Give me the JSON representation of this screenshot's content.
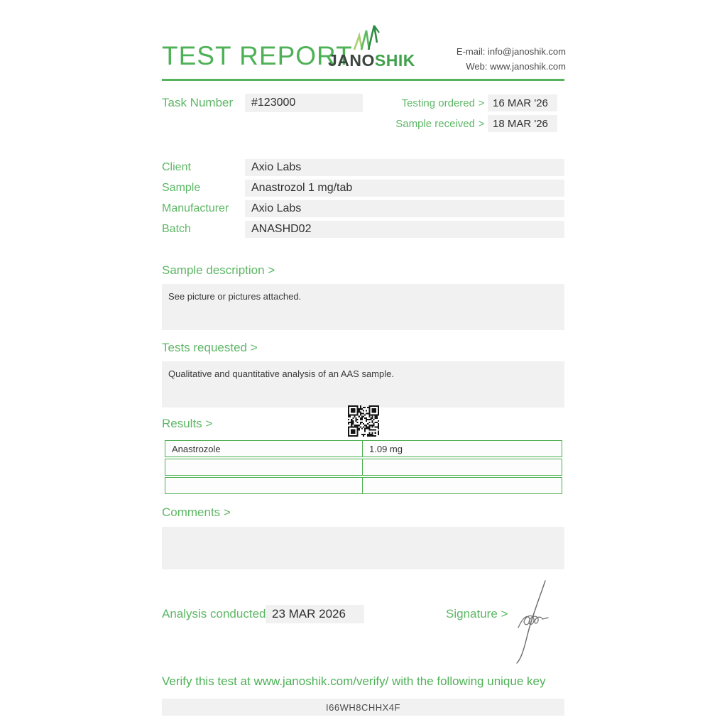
{
  "header": {
    "title": "TEST REPORT",
    "logo": {
      "name_dark": "JANO",
      "name_green": "SHIK"
    },
    "contact": {
      "email_line": "E-mail: info@janoshik.com",
      "web_line": "Web: www.janoshik.com"
    }
  },
  "task": {
    "label": "Task Number",
    "value": "#123000",
    "dates": [
      {
        "label": "Testing ordered",
        "arrow": ">",
        "value": "16 MAR '26"
      },
      {
        "label": "Sample received",
        "arrow": ">",
        "value": "18 MAR '26"
      }
    ]
  },
  "info_rows": [
    {
      "label": "Client",
      "value": "Axio Labs"
    },
    {
      "label": "Sample",
      "value": "Anastrozol 1 mg/tab"
    },
    {
      "label": "Manufacturer",
      "value": "Axio Labs"
    },
    {
      "label": "Batch",
      "value": "ANASHD02"
    }
  ],
  "sections": {
    "sample_description": {
      "heading": "Sample description >",
      "body": "See picture or pictures attached."
    },
    "tests_requested": {
      "heading": "Tests requested >",
      "body": "Qualitative and quantitative analysis of an AAS sample."
    },
    "results": {
      "heading": "Results >",
      "rows": [
        {
          "analyte": "Anastrozole",
          "amount": "1.09 mg"
        },
        {
          "analyte": "",
          "amount": ""
        },
        {
          "analyte": "",
          "amount": ""
        }
      ]
    },
    "comments": {
      "heading": "Comments >",
      "body": ""
    }
  },
  "footer": {
    "analysis_label": "Analysis conducted >",
    "analysis_date": "23 MAR 2026",
    "signature_label": "Signature >",
    "verify_text": "Verify this test at www.janoshik.com/verify/ with the following unique key",
    "verify_key": "I66WH8CHHX4F"
  },
  "colors": {
    "accent_green": "#4db156",
    "label_green": "#5db765",
    "table_border_green": "#4caf50",
    "field_gray": "#f1f1f1",
    "text_dark": "#303030"
  }
}
